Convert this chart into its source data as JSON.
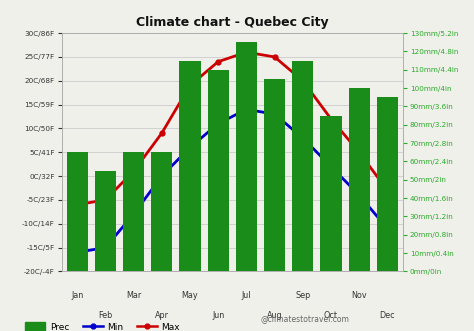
{
  "title": "Climate chart - Quebec City",
  "months": [
    "Jan",
    "Feb",
    "Mar",
    "Apr",
    "May",
    "Jun",
    "Jul",
    "Aug",
    "Sep",
    "Oct",
    "Nov",
    "Dec"
  ],
  "precip_mm": [
    65,
    55,
    65,
    65,
    115,
    110,
    125,
    105,
    115,
    85,
    100,
    95
  ],
  "temp_min": [
    -16,
    -15,
    -8,
    0,
    6,
    11,
    14,
    13,
    8,
    2,
    -4,
    -11
  ],
  "temp_max": [
    -6,
    -5,
    1,
    9,
    19,
    24,
    26,
    25,
    20,
    12,
    5,
    -3
  ],
  "bar_color": "#1a8c1a",
  "min_color": "#0000cc",
  "max_color": "#cc0000",
  "left_yticks": [
    -20,
    -15,
    -10,
    -5,
    0,
    5,
    10,
    15,
    20,
    25,
    30
  ],
  "left_ylabels": [
    "-20C/-4F",
    "-15C/5F",
    "-10C/14F",
    "-5C/23F",
    "0C/32F",
    "5C/41F",
    "10C/50F",
    "15C/59F",
    "20C/68F",
    "25C/77F",
    "30C/86F"
  ],
  "right_yticks": [
    0,
    10,
    20,
    30,
    40,
    50,
    60,
    70,
    80,
    90,
    100,
    110,
    120,
    130
  ],
  "right_ylabels": [
    "0mm/0in",
    "10mm/0.4in",
    "20mm/0.8in",
    "30mm/1.2in",
    "40mm/1.6in",
    "50mm/2in",
    "60mm/2.4in",
    "70mm/2.8in",
    "80mm/3.2in",
    "90mm/3.6in",
    "100mm/4in",
    "110mm/4.4in",
    "120mm/4.8in",
    "130mm/5.2in"
  ],
  "watermark": "@climatestotravel.com",
  "ylim_left": [
    -20,
    30
  ],
  "ylim_right": [
    0,
    130
  ],
  "bg_color": "#f0f0eb",
  "grid_color": "#cccccc",
  "label_color_left": "#333333",
  "label_color_right": "#2aaa2a",
  "tick_color_right": "#2aaa2a",
  "figsize": [
    4.74,
    3.31
  ],
  "dpi": 100
}
